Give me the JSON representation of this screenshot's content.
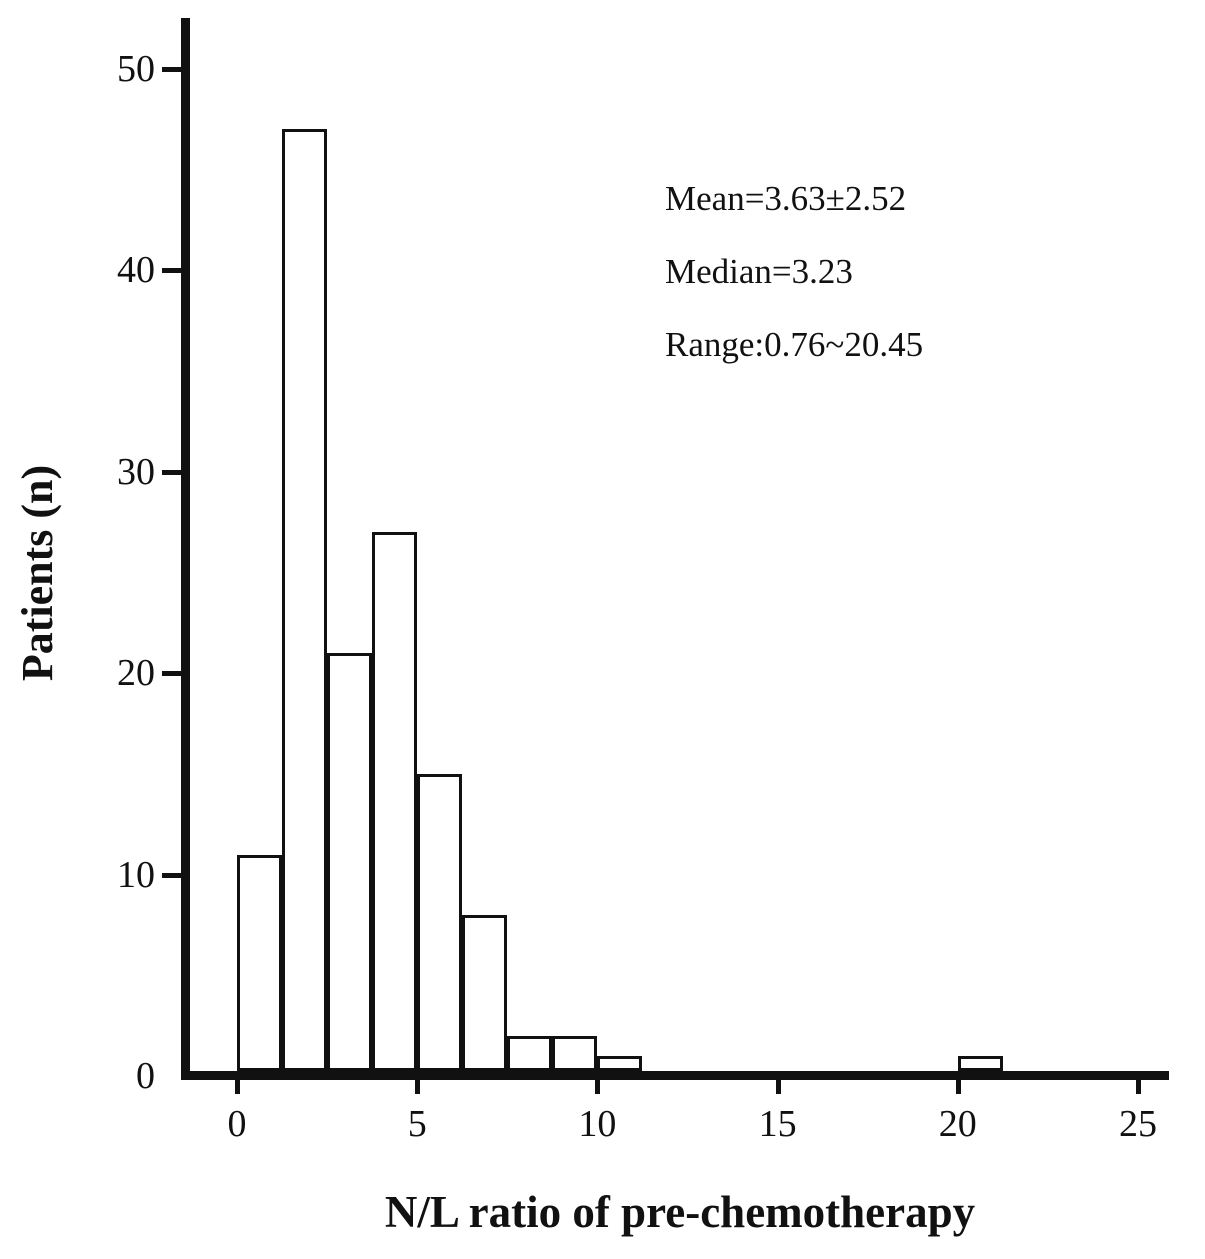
{
  "chart_data": {
    "type": "bar",
    "subtype": "histogram",
    "title": "",
    "xlabel": "N/L ratio of pre-chemotherapy",
    "ylabel": "Patients (n)",
    "x_ticks": [
      0,
      5,
      10,
      15,
      20,
      25
    ],
    "y_ticks": [
      0,
      10,
      20,
      30,
      40,
      50
    ],
    "xlim": [
      -1.5,
      25.8
    ],
    "ylim": [
      0,
      52.5
    ],
    "grid": false,
    "legend": false,
    "bar_fill": "#ffffff",
    "bar_stroke": "#111111",
    "bins": [
      {
        "x_start": 0.0,
        "x_end": 1.25,
        "count": 11
      },
      {
        "x_start": 1.25,
        "x_end": 2.5,
        "count": 47
      },
      {
        "x_start": 2.5,
        "x_end": 3.75,
        "count": 21
      },
      {
        "x_start": 3.75,
        "x_end": 5.0,
        "count": 27
      },
      {
        "x_start": 5.0,
        "x_end": 6.25,
        "count": 15
      },
      {
        "x_start": 6.25,
        "x_end": 7.5,
        "count": 8
      },
      {
        "x_start": 7.5,
        "x_end": 8.75,
        "count": 2
      },
      {
        "x_start": 8.75,
        "x_end": 10.0,
        "count": 2
      },
      {
        "x_start": 10.0,
        "x_end": 11.25,
        "count": 1
      },
      {
        "x_start": 20.0,
        "x_end": 21.25,
        "count": 1
      }
    ],
    "annotations": [
      "Mean=3.63±2.52",
      "Median=3.23",
      "Range:0.76~20.45"
    ]
  }
}
